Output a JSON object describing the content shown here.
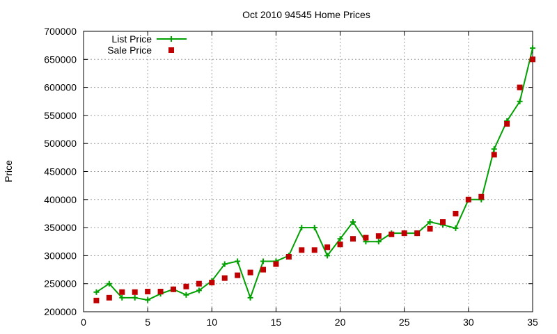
{
  "chart_data": {
    "type": "line",
    "title": "Oct 2010 94545 Home Prices",
    "xlabel": "",
    "ylabel": "Price",
    "xlim": [
      0,
      35
    ],
    "ylim": [
      200000,
      700000
    ],
    "x_ticks": [
      0,
      5,
      10,
      15,
      20,
      25,
      30,
      35
    ],
    "y_ticks": [
      200000,
      250000,
      300000,
      350000,
      400000,
      450000,
      500000,
      550000,
      600000,
      650000,
      700000
    ],
    "grid": true,
    "legend_position": "top-left",
    "series": [
      {
        "name": "List Price",
        "style": "lines+points",
        "marker": "plus",
        "color": "#00a000",
        "x": [
          1,
          2,
          3,
          4,
          5,
          6,
          7,
          8,
          9,
          10,
          11,
          12,
          13,
          14,
          15,
          16,
          17,
          18,
          19,
          20,
          21,
          22,
          23,
          24,
          25,
          26,
          27,
          28,
          29,
          30,
          31,
          32,
          33,
          34,
          35
        ],
        "values": [
          235000,
          250000,
          225000,
          225000,
          221000,
          232000,
          240000,
          230000,
          238000,
          255000,
          285000,
          290000,
          225000,
          290000,
          290000,
          300000,
          350000,
          350000,
          300000,
          330000,
          360000,
          325000,
          325000,
          340000,
          340000,
          340000,
          360000,
          355000,
          349000,
          400000,
          400000,
          490000,
          540000,
          575000,
          670000
        ]
      },
      {
        "name": "Sale Price",
        "style": "points",
        "marker": "square",
        "color": "#c00000",
        "x": [
          1,
          2,
          3,
          4,
          5,
          6,
          7,
          8,
          9,
          10,
          11,
          12,
          13,
          14,
          15,
          16,
          17,
          18,
          19,
          20,
          21,
          22,
          23,
          24,
          25,
          26,
          27,
          28,
          29,
          30,
          31,
          32,
          33,
          34,
          35
        ],
        "values": [
          220000,
          225000,
          235000,
          235000,
          236000,
          236000,
          240000,
          245000,
          250000,
          252000,
          260000,
          265000,
          270000,
          275000,
          285000,
          298000,
          310000,
          310000,
          315000,
          320000,
          330000,
          332000,
          335000,
          338000,
          340000,
          340000,
          348000,
          360000,
          375000,
          400000,
          405000,
          480000,
          535000,
          600000,
          650000
        ]
      }
    ]
  }
}
